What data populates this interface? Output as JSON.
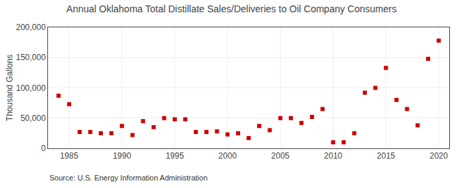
{
  "chart_data": {
    "type": "scatter",
    "title": "Annual Oklahoma Total Distillate Sales/Deliveries to Oil Company Consumers",
    "ylabel": "Thousand Gallons",
    "annotations": [
      "Source: U.S. Energy Information Administration"
    ],
    "x": [
      1984,
      1985,
      1986,
      1987,
      1988,
      1989,
      1990,
      1991,
      1992,
      1993,
      1994,
      1995,
      1996,
      1997,
      1998,
      1999,
      2000,
      2001,
      2002,
      2003,
      2004,
      2005,
      2006,
      2007,
      2008,
      2009,
      2010,
      2011,
      2012,
      2013,
      2014,
      2015,
      2016,
      2017,
      2018,
      2019,
      2020
    ],
    "values": [
      87000,
      73000,
      27000,
      27000,
      25000,
      25000,
      37000,
      22000,
      45000,
      35000,
      50000,
      48000,
      48000,
      27000,
      27000,
      28000,
      23000,
      25000,
      17000,
      37000,
      30000,
      50000,
      50000,
      42000,
      52000,
      65000,
      10000,
      10000,
      25000,
      92000,
      100000,
      133000,
      80000,
      65000,
      38000,
      148000,
      178000
    ],
    "color": "#cc0000",
    "marker": "square",
    "xlim": [
      1983,
      2021
    ],
    "xticks": [
      1985,
      1990,
      1995,
      2000,
      2005,
      2010,
      2015,
      2020
    ],
    "ylim": [
      0,
      200000
    ],
    "yticks": [
      0,
      {
        "value": 50000,
        "label": "50,000"
      },
      {
        "value": 100000,
        "label": "100,000"
      },
      {
        "value": 150000,
        "label": "150,000"
      },
      {
        "value": 200000,
        "label": "200,000"
      }
    ],
    "grid": true
  }
}
